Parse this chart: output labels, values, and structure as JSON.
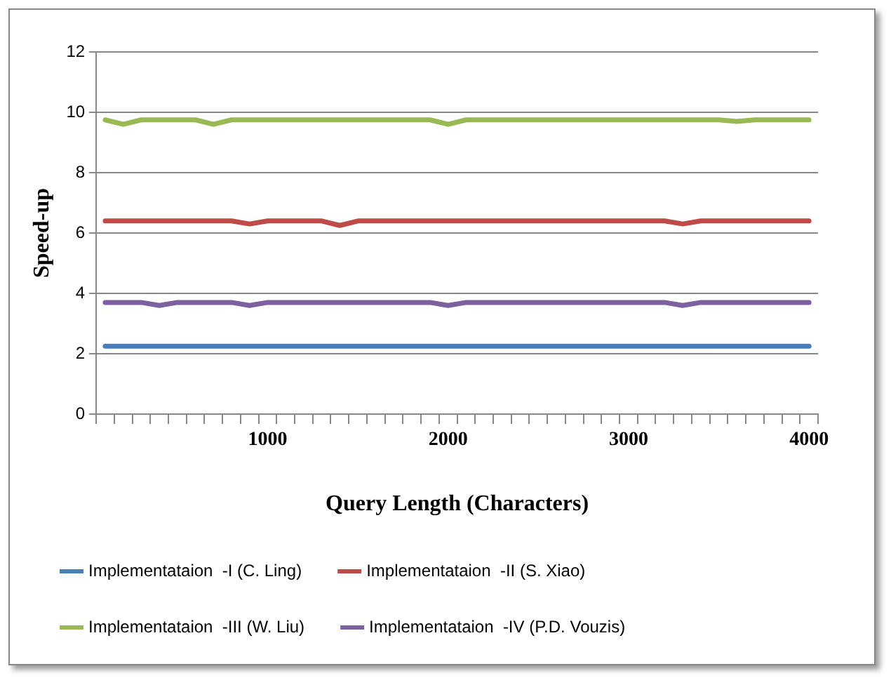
{
  "chart_data": {
    "type": "line",
    "xlabel": "Query Length (Characters)",
    "ylabel": "Speed-up",
    "categories": [
      null,
      null,
      null,
      null,
      null,
      null,
      null,
      null,
      null,
      "1000",
      null,
      null,
      null,
      null,
      null,
      null,
      null,
      null,
      null,
      "2000",
      null,
      null,
      null,
      null,
      null,
      null,
      null,
      null,
      null,
      "3000",
      null,
      null,
      null,
      null,
      null,
      null,
      null,
      null,
      null,
      "4000"
    ],
    "series": [
      {
        "name": "Implementataion  -I (C. Ling)",
        "color": "#4a7ebb",
        "values": [
          2.25,
          2.25,
          2.25,
          2.25,
          2.25,
          2.25,
          2.25,
          2.25,
          2.25,
          2.25,
          2.25,
          2.25,
          2.25,
          2.25,
          2.25,
          2.25,
          2.25,
          2.25,
          2.25,
          2.25,
          2.25,
          2.25,
          2.25,
          2.25,
          2.25,
          2.25,
          2.25,
          2.25,
          2.25,
          2.25,
          2.25,
          2.25,
          2.25,
          2.25,
          2.25,
          2.25,
          2.25,
          2.25,
          2.25,
          2.25
        ]
      },
      {
        "name": "Implementataion  -II (S. Xiao)",
        "color": "#be4b48",
        "values": [
          6.4,
          6.4,
          6.4,
          6.4,
          6.4,
          6.4,
          6.4,
          6.4,
          6.3,
          6.4,
          6.4,
          6.4,
          6.4,
          6.25,
          6.4,
          6.4,
          6.4,
          6.4,
          6.4,
          6.4,
          6.4,
          6.4,
          6.4,
          6.4,
          6.4,
          6.4,
          6.4,
          6.4,
          6.4,
          6.4,
          6.4,
          6.4,
          6.3,
          6.4,
          6.4,
          6.4,
          6.4,
          6.4,
          6.4,
          6.4
        ]
      },
      {
        "name": "Implementataion  -III (W. Liu)",
        "color": "#98b954",
        "values": [
          9.75,
          9.6,
          9.75,
          9.75,
          9.75,
          9.75,
          9.6,
          9.75,
          9.75,
          9.75,
          9.75,
          9.75,
          9.75,
          9.75,
          9.75,
          9.75,
          9.75,
          9.75,
          9.75,
          9.6,
          9.75,
          9.75,
          9.75,
          9.75,
          9.75,
          9.75,
          9.75,
          9.75,
          9.75,
          9.75,
          9.75,
          9.75,
          9.75,
          9.75,
          9.75,
          9.7,
          9.75,
          9.75,
          9.75,
          9.75
        ]
      },
      {
        "name": "Implementataion  -IV (P.D. Vouzis)",
        "color": "#7d60a0",
        "values": [
          3.7,
          3.7,
          3.7,
          3.6,
          3.7,
          3.7,
          3.7,
          3.7,
          3.6,
          3.7,
          3.7,
          3.7,
          3.7,
          3.7,
          3.7,
          3.7,
          3.7,
          3.7,
          3.7,
          3.6,
          3.7,
          3.7,
          3.7,
          3.7,
          3.7,
          3.7,
          3.7,
          3.7,
          3.7,
          3.7,
          3.7,
          3.7,
          3.6,
          3.7,
          3.7,
          3.7,
          3.7,
          3.7,
          3.7,
          3.7
        ]
      }
    ],
    "ylim": [
      0,
      12
    ],
    "yticks": [
      0,
      2,
      4,
      6,
      8,
      10,
      12
    ],
    "grid": "y",
    "legend": "bottom",
    "marker": "none",
    "line_style": "solid"
  }
}
